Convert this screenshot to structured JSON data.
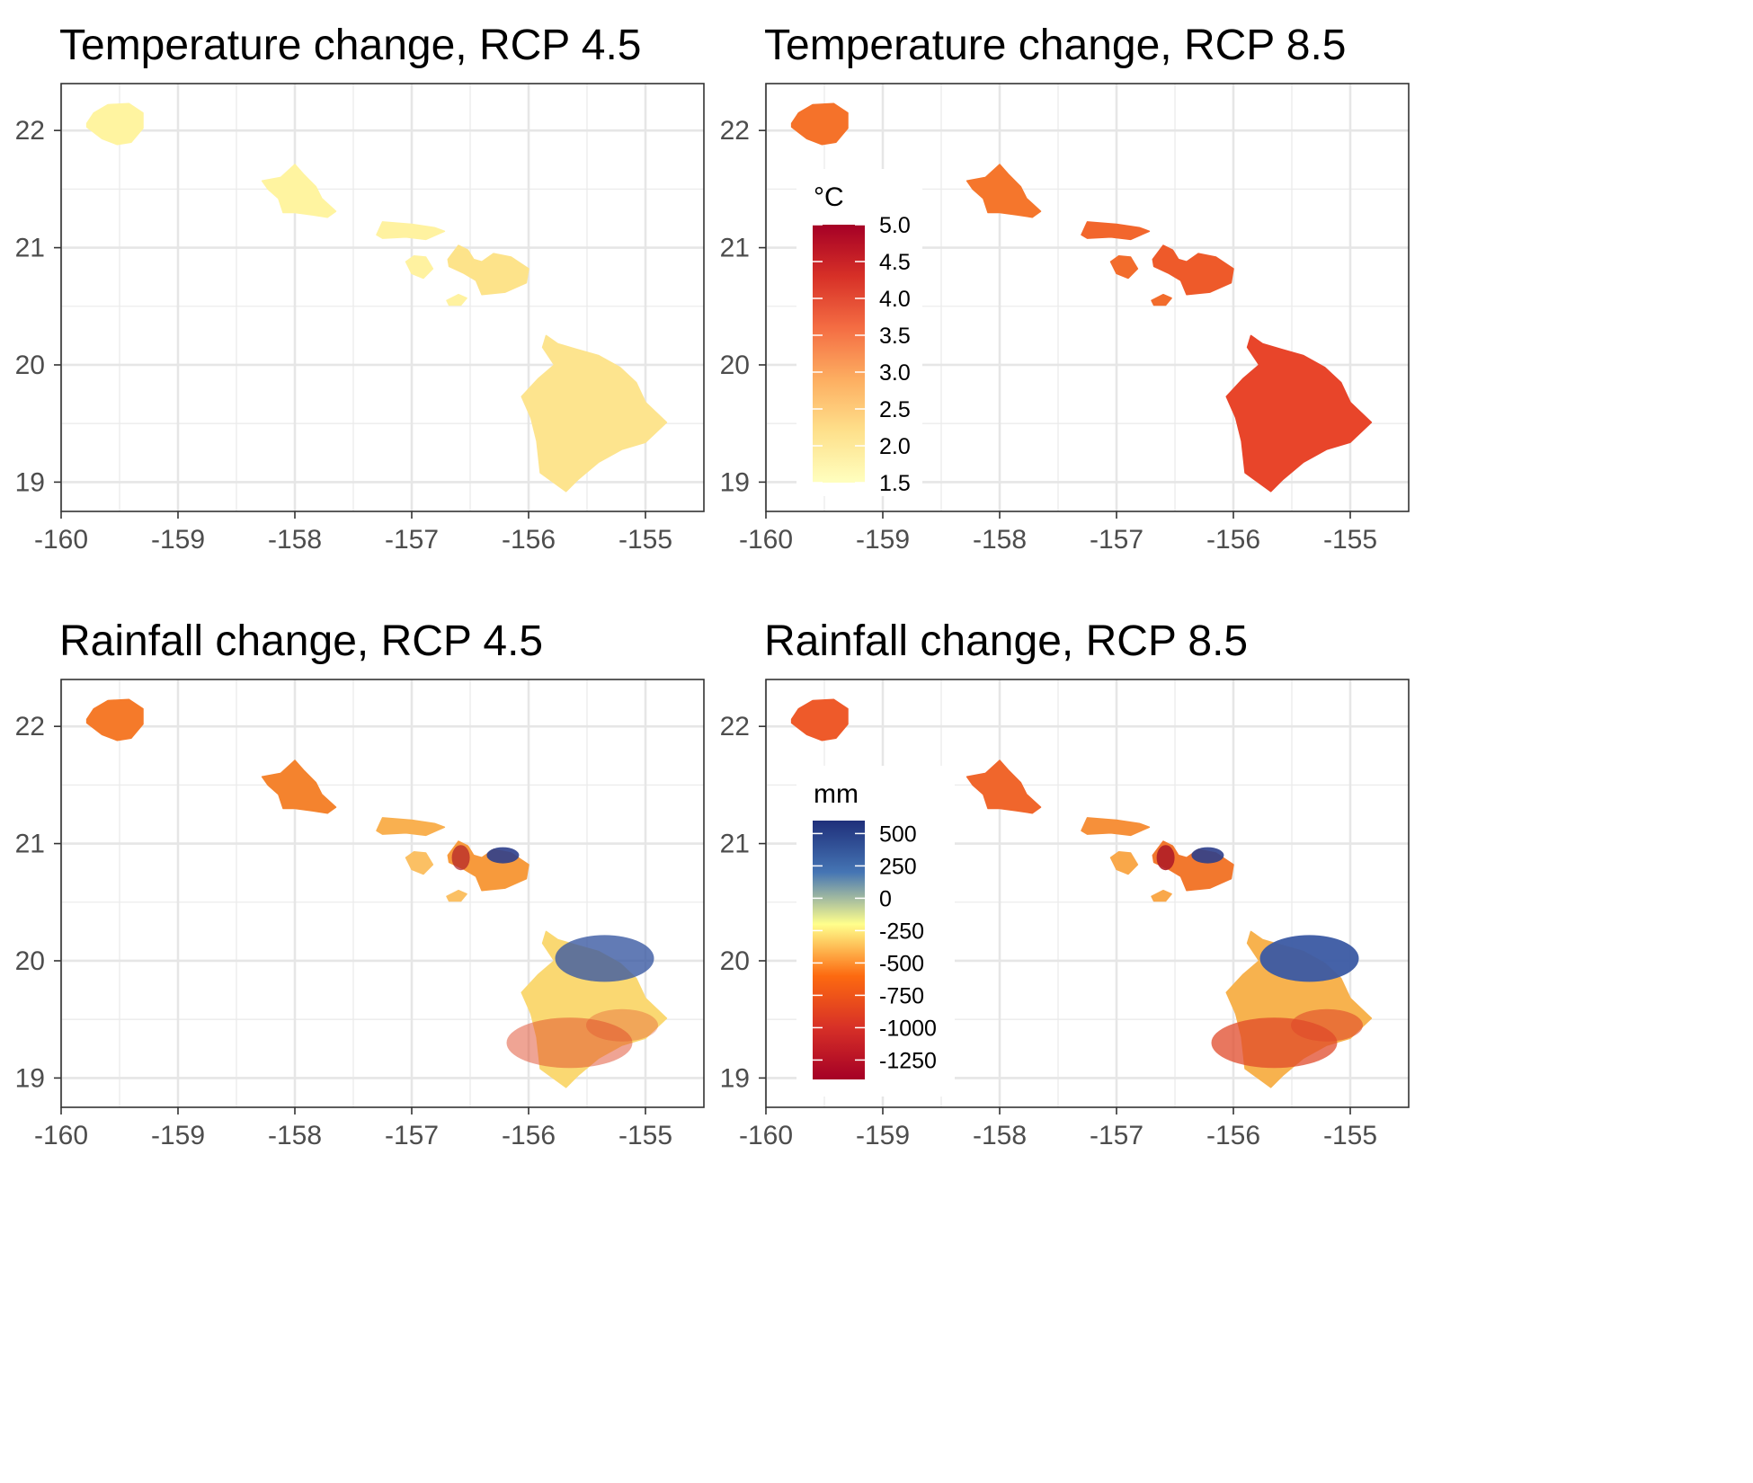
{
  "chart_data": [
    {
      "type": "heatmap",
      "title": "Temperature change, RCP 4.5",
      "xlim": [
        -160,
        -154.5
      ],
      "ylim": [
        18.75,
        22.4
      ],
      "x_ticks": [
        "-160",
        "-159",
        "-158",
        "-157",
        "-156",
        "-155"
      ],
      "y_ticks": [
        "19",
        "20",
        "21",
        "22"
      ],
      "grid": true,
      "legend": null,
      "fill": {
        "kauai": "#fff4a0",
        "oahu": "#fff4a0",
        "molokai": "#fff2a0",
        "lanai": "#fff2a0",
        "maui": "#fde38a",
        "kahoolawe": "#fff2a0",
        "hawaii": "#fde48e"
      }
    },
    {
      "type": "heatmap",
      "title": "Temperature change, RCP 8.5",
      "xlim": [
        -160,
        -154.5
      ],
      "ylim": [
        18.75,
        22.4
      ],
      "x_ticks": [
        "-160",
        "-159",
        "-158",
        "-157",
        "-156",
        "-155"
      ],
      "y_ticks": [
        "19",
        "20",
        "21",
        "22"
      ],
      "grid": true,
      "legend": {
        "title": "°C",
        "labels": [
          "5.0",
          "4.5",
          "4.0",
          "3.5",
          "3.0",
          "2.5",
          "2.0",
          "1.5"
        ],
        "range": [
          1.5,
          5.0
        ],
        "colors": [
          "#ffffbf",
          "#fee08b",
          "#fdae61",
          "#f46d43",
          "#d73027",
          "#a50026"
        ]
      },
      "fill": {
        "kauai": "#f5722a",
        "oahu": "#f5762c",
        "molokai": "#f2662c",
        "lanai": "#f26c2c",
        "maui": "#ee5a2a",
        "kahoolawe": "#f26c2c",
        "hawaii": "#e8452a"
      }
    },
    {
      "type": "heatmap",
      "title": "Rainfall change, RCP 4.5",
      "xlim": [
        -160,
        -154.5
      ],
      "ylim": [
        18.75,
        22.4
      ],
      "x_ticks": [
        "-160",
        "-159",
        "-158",
        "-157",
        "-156",
        "-155"
      ],
      "y_ticks": [
        "19",
        "20",
        "21",
        "22"
      ],
      "grid": true,
      "legend": null,
      "fill": {
        "kauai": "#f57a2a",
        "oahu": "#f4832e",
        "molokai": "#f9b050",
        "lanai": "#fbc064",
        "maui": "#f79a3c",
        "kahoolawe": "#fbc064",
        "hawaii": "#fad872"
      }
    },
    {
      "type": "heatmap",
      "title": "Rainfall change, RCP 8.5",
      "xlim": [
        -160,
        -154.5
      ],
      "ylim": [
        18.75,
        22.4
      ],
      "x_ticks": [
        "-160",
        "-159",
        "-158",
        "-157",
        "-156",
        "-155"
      ],
      "y_ticks": [
        "19",
        "20",
        "21",
        "22"
      ],
      "grid": true,
      "legend": {
        "title": "mm",
        "labels": [
          "500",
          "250",
          "0",
          "-250",
          "-500",
          "-750",
          "-1000",
          "-1250"
        ],
        "values": [
          500,
          250,
          0,
          -250,
          -500,
          -750,
          -1000,
          -1250
        ],
        "range": [
          -1400,
          600
        ],
        "colors": [
          "#a50026",
          "#d73027",
          "#fd6a10",
          "#ffff8c",
          "#4575b4",
          "#1f2f7a"
        ]
      },
      "fill": {
        "kauai": "#ee5a2a",
        "oahu": "#f0662c",
        "molokai": "#f6903a",
        "lanai": "#f9a84a",
        "maui": "#f2782e",
        "kahoolawe": "#f9a84a",
        "hawaii": "#f7b24e"
      }
    }
  ]
}
